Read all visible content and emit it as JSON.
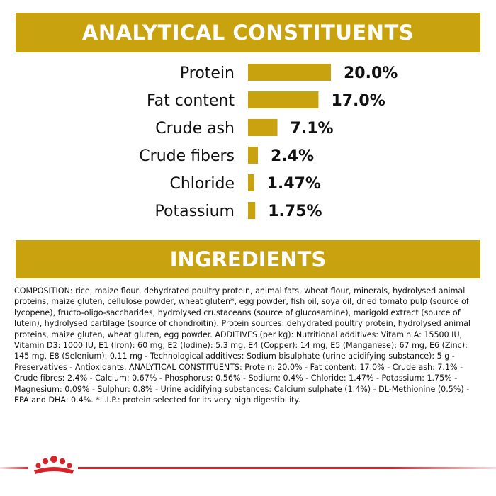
{
  "analytical": {
    "title": "ANALYTICAL CONSTITUENTS"
  },
  "ingredients": {
    "title": "INGREDIENTS"
  },
  "chart_data": {
    "type": "bar",
    "orientation": "horizontal",
    "categories": [
      "Protein",
      "Fat content",
      "Crude ash",
      "Crude fibers",
      "Chloride",
      "Potassium"
    ],
    "values": [
      20.0,
      17.0,
      7.1,
      2.4,
      1.47,
      1.75
    ],
    "value_labels": [
      "20.0%",
      "17.0%",
      "7.1%",
      "2.4%",
      "1.47%",
      "1.75%"
    ],
    "unit": "%",
    "bar_color": "#c8a20f",
    "grid": false,
    "legend": "none"
  },
  "composition_text": "COMPOSITION: rice, maize flour, dehydrated poultry protein, animal fats, wheat flour, minerals, hydrolysed animal proteins, maize gluten, cellulose powder, wheat gluten*, egg powder, fish oil, soya oil, dried tomato pulp (source of lycopene), fructo-oligo-saccharides, hydrolysed crustaceans (source of glucosamine), marigold extract (source of lutein), hydrolysed cartilage (source of chondroitin). Protein sources: dehydrated poultry protein, hydrolysed animal proteins, maize gluten, wheat gluten, egg powder. ADDITIVES (per kg): Nutritional additives: Vitamin A: 15500 IU, Vitamin D3: 1000 IU, E1 (Iron): 60 mg, E2 (Iodine): 5.3 mg, E4 (Copper): 14 mg, E5 (Manganese): 67 mg, E6 (Zinc): 145 mg, E8 (Selenium): 0.11 mg - Technological additives: Sodium bisulphate (urine acidifying substance): 5 g - Preservatives - Antioxidants. ANALYTICAL CONSTITUENTS: Protein: 20.0% - Fat content: 17.0% - Crude ash: 7.1% - Crude fibres: 2.4% - Calcium: 0.67% - Phosphorus: 0.56% - Sodium: 0.4% - Chloride: 1.47% - Potassium: 1.75% - Magnesium: 0.09% - Sulphur: 0.8% - Urine acidifying substances: Calcium sulphate (1.4%) - DL-Methionine (0.5%) - EPA and DHA: 0.4%. *L.I.P.: protein selected for its very high digestibility.",
  "colors": {
    "accent": "#c8a20f",
    "brand_red": "#d8222a"
  },
  "logo": {
    "icon": "crown-icon"
  }
}
